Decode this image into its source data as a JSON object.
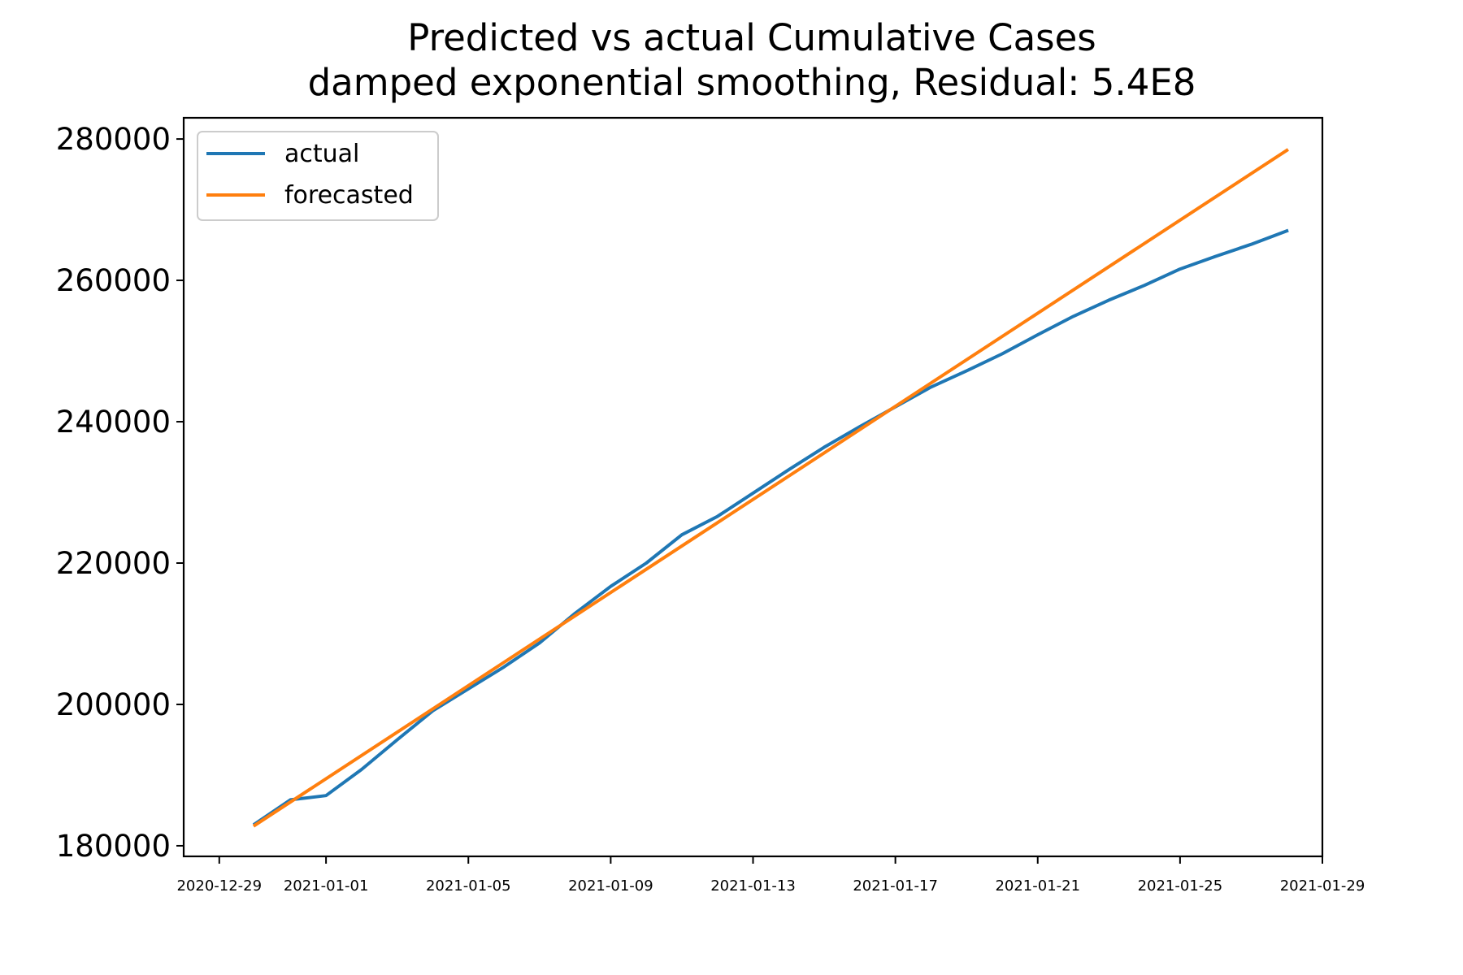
{
  "chart_data": {
    "type": "line",
    "title": "Predicted vs actual Cumulative Cases",
    "subtitle": "damped exponential smoothing, Residual: 5.4E8",
    "xlabel": "",
    "ylabel": "",
    "x_type": "date",
    "xlim": [
      "2020-12-28",
      "2021-01-29"
    ],
    "ylim": [
      178500,
      283000
    ],
    "x_ticks": [
      "2020-12-29",
      "2021-01-01",
      "2021-01-05",
      "2021-01-09",
      "2021-01-13",
      "2021-01-17",
      "2021-01-21",
      "2021-01-25",
      "2021-01-29"
    ],
    "y_ticks": [
      180000,
      200000,
      220000,
      240000,
      260000,
      280000
    ],
    "grid": false,
    "legend_position": "upper-left",
    "series": [
      {
        "name": "actual",
        "color": "#1f77b4",
        "x": [
          "2020-12-30",
          "2020-12-31",
          "2021-01-01",
          "2021-01-02",
          "2021-01-03",
          "2021-01-04",
          "2021-01-05",
          "2021-01-06",
          "2021-01-07",
          "2021-01-08",
          "2021-01-09",
          "2021-01-10",
          "2021-01-11",
          "2021-01-12",
          "2021-01-13",
          "2021-01-14",
          "2021-01-15",
          "2021-01-16",
          "2021-01-17",
          "2021-01-18",
          "2021-01-19",
          "2021-01-20",
          "2021-01-21",
          "2021-01-22",
          "2021-01-23",
          "2021-01-24",
          "2021-01-25",
          "2021-01-26",
          "2021-01-27",
          "2021-01-28"
        ],
        "values": [
          183100,
          186500,
          187100,
          190800,
          195000,
          199100,
          202200,
          205300,
          208700,
          212900,
          216700,
          220000,
          224000,
          226600,
          229900,
          233200,
          236400,
          239300,
          242100,
          244900,
          247200,
          249600,
          252300,
          254900,
          257200,
          259300,
          261600,
          263400,
          265100,
          267000
        ]
      },
      {
        "name": "forecasted",
        "color": "#ff7f0e",
        "x": [
          "2020-12-30",
          "2021-01-28"
        ],
        "values": [
          182900,
          278400
        ]
      }
    ]
  }
}
